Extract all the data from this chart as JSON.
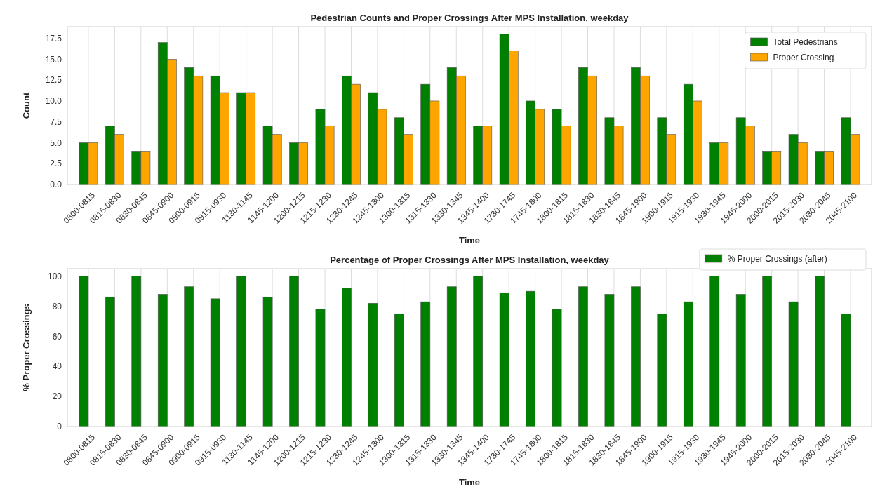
{
  "chart_data": [
    {
      "type": "bar",
      "title": "Pedestrian Counts and Proper Crossings After MPS Installation, weekday",
      "xlabel": "Time",
      "ylabel": "Count",
      "categories": [
        "0800-0815",
        "0815-0830",
        "0830-0845",
        "0845-0900",
        "0900-0915",
        "0915-0930",
        "1130-1145",
        "1145-1200",
        "1200-1215",
        "1215-1230",
        "1230-1245",
        "1245-1300",
        "1300-1315",
        "1315-1330",
        "1330-1345",
        "1345-1400",
        "1730-1745",
        "1745-1800",
        "1800-1815",
        "1815-1830",
        "1830-1845",
        "1845-1900",
        "1900-1915",
        "1915-1930",
        "1930-1945",
        "1945-2000",
        "2000-2015",
        "2015-2030",
        "2030-2045",
        "2045-2100"
      ],
      "series": [
        {
          "name": "Total Pedestrians",
          "color": "#008000",
          "values": [
            5,
            7,
            4,
            17,
            14,
            13,
            11,
            7,
            5,
            9,
            13,
            11,
            8,
            12,
            14,
            7,
            18,
            10,
            9,
            14,
            8,
            14,
            8,
            12,
            5,
            8,
            4,
            6,
            4,
            8
          ]
        },
        {
          "name": "Proper Crossing",
          "color": "#ffa500",
          "values": [
            5,
            6,
            4,
            15,
            13,
            11,
            11,
            6,
            5,
            7,
            12,
            9,
            6,
            10,
            13,
            7,
            16,
            9,
            7,
            13,
            7,
            13,
            6,
            10,
            5,
            7,
            4,
            5,
            4,
            6
          ]
        }
      ],
      "ylim": [
        0,
        18.9
      ],
      "yticks": [
        {
          "value": 0,
          "label": "0.0"
        },
        {
          "value": 2.5,
          "label": "2.5"
        },
        {
          "value": 5,
          "label": "5.0"
        },
        {
          "value": 7.5,
          "label": "7.5"
        },
        {
          "value": 10,
          "label": "10.0"
        },
        {
          "value": 12.5,
          "label": "12.5"
        },
        {
          "value": 15,
          "label": "15.0"
        },
        {
          "value": 17.5,
          "label": "17.5"
        }
      ],
      "grid": "x",
      "legend": "top right"
    },
    {
      "type": "bar",
      "title": "Percentage of Proper Crossings After MPS Installation, weekday",
      "xlabel": "Time",
      "ylabel": "% Proper Crossings",
      "categories": [
        "0800-0815",
        "0815-0830",
        "0830-0845",
        "0845-0900",
        "0900-0915",
        "0915-0930",
        "1130-1145",
        "1145-1200",
        "1200-1215",
        "1215-1230",
        "1230-1245",
        "1245-1300",
        "1300-1315",
        "1315-1330",
        "1330-1345",
        "1345-1400",
        "1730-1745",
        "1745-1800",
        "1800-1815",
        "1815-1830",
        "1830-1845",
        "1845-1900",
        "1900-1915",
        "1915-1930",
        "1930-1945",
        "1945-2000",
        "2000-2015",
        "2015-2030",
        "2030-2045",
        "2045-2100"
      ],
      "series": [
        {
          "name": "% Proper Crossings (after)",
          "color": "#008000",
          "values": [
            100,
            86,
            100,
            88,
            93,
            85,
            100,
            86,
            100,
            78,
            92,
            82,
            75,
            83,
            93,
            100,
            89,
            90,
            78,
            93,
            88,
            93,
            75,
            83,
            100,
            88,
            100,
            83,
            100,
            75
          ]
        }
      ],
      "ylim": [
        0,
        105
      ],
      "yticks": [
        0,
        20,
        40,
        60,
        80,
        100
      ],
      "grid": "x",
      "legend": "top right"
    }
  ]
}
